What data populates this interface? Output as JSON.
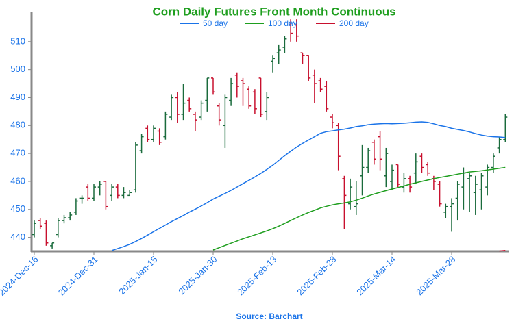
{
  "chart_data": {
    "type": "ohlc",
    "title": "Corn Daily Futures Front Month Continuous",
    "source": "Source: Barchart",
    "categories": [
      "2024-Dec-16",
      null,
      null,
      null,
      null,
      null,
      null,
      null,
      null,
      null,
      "2024-Dec-31",
      null,
      null,
      null,
      null,
      null,
      null,
      null,
      null,
      null,
      "2025-Jan-15",
      null,
      null,
      null,
      null,
      null,
      null,
      null,
      null,
      null,
      "2025-Jan-30",
      null,
      null,
      null,
      null,
      null,
      null,
      null,
      null,
      null,
      "2025-Feb-13",
      null,
      null,
      null,
      null,
      null,
      null,
      null,
      null,
      null,
      "2025-Feb-28",
      null,
      null,
      null,
      null,
      null,
      null,
      null,
      null,
      null,
      "2025-Mar-14",
      null,
      null,
      null,
      null,
      null,
      null,
      null,
      null,
      null,
      "2025-Mar-28",
      null,
      null,
      null,
      null,
      null,
      null,
      null,
      null,
      null
    ],
    "up_color": "#1a6b3c",
    "down_color": "#c8102e",
    "open": [
      441,
      446,
      445,
      437,
      441,
      446,
      447,
      449,
      454,
      458,
      454,
      458,
      460,
      455,
      458,
      455,
      455,
      457,
      471,
      479,
      475,
      478,
      476,
      483,
      490,
      484,
      489,
      484,
      483,
      489,
      497,
      487,
      480,
      489,
      498,
      496,
      493,
      492,
      497,
      485,
      503,
      506,
      508,
      516,
      516,
      506,
      505,
      498,
      496,
      494,
      483,
      480,
      461,
      452,
      451,
      462,
      465,
      474,
      476,
      462,
      460,
      466,
      458,
      461,
      463,
      469,
      466,
      461,
      459,
      449,
      451,
      454,
      458,
      461,
      456,
      457,
      458,
      465,
      472,
      475
    ],
    "high": [
      446,
      447,
      446,
      438,
      447,
      448,
      449,
      454,
      455,
      459,
      459,
      460,
      460,
      459,
      459,
      458,
      457,
      474,
      477,
      480,
      480,
      479,
      485,
      491,
      492,
      495,
      490,
      485,
      489,
      497,
      497,
      488,
      491,
      497,
      499,
      497,
      494,
      493,
      497,
      492,
      505,
      509,
      512,
      518,
      518,
      506,
      505,
      500,
      497,
      496,
      484,
      481,
      462,
      461,
      460,
      473,
      472,
      475,
      478,
      472,
      466,
      466,
      463,
      462,
      470,
      470,
      467,
      462,
      460,
      452,
      454,
      460,
      465,
      463,
      462,
      463,
      466,
      470,
      476,
      484
    ],
    "low": [
      440,
      443,
      437,
      436,
      440,
      445,
      446,
      448,
      452,
      453,
      453,
      455,
      450,
      453,
      454,
      454,
      455,
      456,
      470,
      474,
      474,
      473,
      475,
      482,
      481,
      482,
      485,
      478,
      482,
      485,
      491,
      480,
      472,
      487,
      490,
      487,
      486,
      484,
      483,
      482,
      499,
      502,
      506,
      510,
      510,
      502,
      496,
      488,
      492,
      485,
      479,
      464,
      443,
      450,
      448,
      455,
      463,
      466,
      464,
      458,
      457,
      458,
      456,
      456,
      459,
      463,
      462,
      457,
      451,
      447,
      442,
      446,
      450,
      449,
      448,
      450,
      455,
      463,
      470,
      474
    ],
    "close": [
      445,
      444,
      438,
      438,
      446,
      447,
      448,
      453,
      454,
      454,
      458,
      459,
      451,
      458,
      455,
      456,
      456,
      473,
      476,
      475,
      479,
      474,
      484,
      490,
      484,
      488,
      486,
      482,
      488,
      497,
      492,
      482,
      490,
      495,
      494,
      495,
      487,
      486,
      484,
      490,
      504,
      507,
      511,
      513,
      512,
      505,
      497,
      495,
      493,
      486,
      481,
      469,
      455,
      458,
      452,
      465,
      471,
      468,
      468,
      470,
      464,
      459,
      461,
      458,
      467,
      465,
      463,
      460,
      452,
      451,
      452,
      459,
      463,
      462,
      459,
      462,
      465,
      469,
      475,
      483
    ],
    "series": [
      {
        "name": "50 day",
        "color": "#1a73e8",
        "values": [
          null,
          null,
          null,
          null,
          null,
          null,
          null,
          null,
          null,
          null,
          null,
          null,
          null,
          435.3,
          436,
          436.7,
          437.5,
          438.5,
          439.6,
          440.8,
          442,
          443.2,
          444.4,
          445.6,
          446.7,
          447.8,
          449,
          450.1,
          451.2,
          452.4,
          453.7,
          454.7,
          455.7,
          456.8,
          458,
          459.2,
          460.4,
          461.6,
          462.9,
          464.3,
          465.8,
          467.5,
          469.2,
          470.8,
          472.3,
          473.6,
          474.8,
          476,
          477.2,
          477.8,
          478.1,
          478.4,
          478.7,
          479.1,
          479.6,
          479.9,
          480.3,
          480.5,
          480.6,
          480.7,
          480.6,
          480.7,
          480.8,
          481,
          481.2,
          481.3,
          481.1,
          480.6,
          480,
          479.6,
          479,
          478.6,
          478.2,
          477.7,
          477.1,
          476.6,
          476.2,
          476,
          475.9,
          475.7
        ]
      },
      {
        "name": "100 day",
        "color": "#1e9e1e",
        "values": [
          null,
          null,
          null,
          null,
          null,
          null,
          null,
          null,
          null,
          null,
          null,
          null,
          null,
          null,
          null,
          null,
          null,
          null,
          null,
          null,
          null,
          null,
          null,
          null,
          null,
          null,
          null,
          null,
          null,
          null,
          435.5,
          436.3,
          437.1,
          437.9,
          438.7,
          439.5,
          440.2,
          440.9,
          441.6,
          442.3,
          443.1,
          444,
          445,
          446,
          447,
          448,
          448.9,
          449.7,
          450.5,
          451.1,
          451.6,
          452,
          452.3,
          452.7,
          453.3,
          454,
          454.8,
          455.5,
          456.1,
          456.7,
          457.3,
          457.8,
          458.4,
          459,
          459.5,
          460,
          460.5,
          461,
          461.4,
          461.8,
          462.2,
          462.6,
          463,
          463.4,
          463.6,
          463.8,
          464.1,
          464.4,
          464.7,
          465
        ]
      },
      {
        "name": "200 day",
        "color": "#c8102e",
        "values": [
          null,
          null,
          null,
          null,
          null,
          null,
          null,
          null,
          null,
          null,
          null,
          null,
          null,
          null,
          null,
          null,
          null,
          null,
          null,
          null,
          null,
          null,
          null,
          null,
          null,
          null,
          null,
          null,
          null,
          null,
          null,
          null,
          null,
          null,
          null,
          null,
          null,
          null,
          null,
          null,
          null,
          null,
          null,
          null,
          null,
          null,
          null,
          null,
          null,
          null,
          null,
          null,
          null,
          null,
          null,
          null,
          null,
          null,
          null,
          null,
          null,
          null,
          null,
          null,
          null,
          null,
          null,
          null,
          null,
          null,
          null,
          null,
          null,
          null,
          null,
          null,
          null,
          null,
          435.1,
          435.3
        ]
      }
    ],
    "ylim": [
      435,
      520
    ],
    "yticks": [
      440,
      450,
      460,
      470,
      480,
      490,
      500,
      510
    ]
  }
}
